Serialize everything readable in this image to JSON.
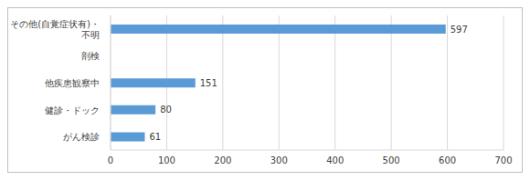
{
  "chart_data": {
    "type": "bar",
    "orientation": "horizontal",
    "categories": [
      "その他(自覚症状有)・不明",
      "剖検",
      "他疾患観察中",
      "健診・ドック",
      "がん検診"
    ],
    "values": [
      597,
      0,
      151,
      80,
      61
    ],
    "color": "#5b9bd5",
    "xlim": [
      0,
      700
    ],
    "xticks": [
      0,
      100,
      200,
      300,
      400,
      500,
      600,
      700
    ],
    "grid": true,
    "data_labels": true
  }
}
